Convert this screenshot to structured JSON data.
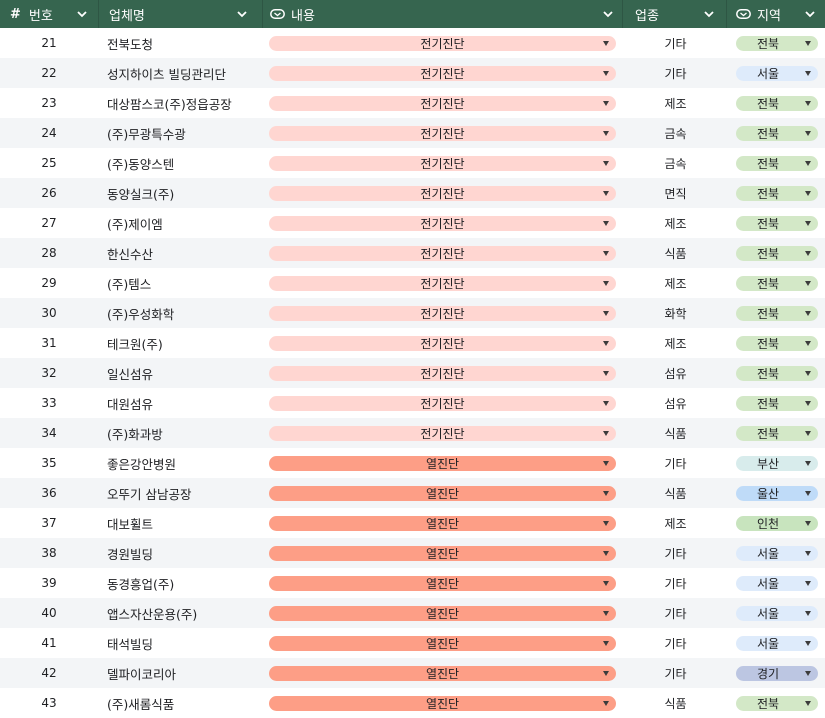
{
  "header": {
    "col_hash": "#",
    "col_no": "번호",
    "col_name": "업체명",
    "col_content": "내용",
    "col_type": "업종",
    "col_region": "지역"
  },
  "colors": {
    "header_bg": "#36654f",
    "pill_전기진단": "#ffd6d1",
    "pill_열진단": "#fd9e86",
    "region_전북": "#d3e8c7",
    "region_서울": "#deebfb",
    "region_부산": "#d8ecec",
    "region_울산": "#bfdbf8",
    "region_인천": "#c8e4be",
    "region_경기": "#bcc6e2"
  },
  "rows": [
    {
      "no": "21",
      "name": "전북도청",
      "content": "전기진단",
      "type": "기타",
      "region": "전북"
    },
    {
      "no": "22",
      "name": "성지하이츠 빌딩관리단",
      "content": "전기진단",
      "type": "기타",
      "region": "서울"
    },
    {
      "no": "23",
      "name": "대상팜스코(주)정읍공장",
      "content": "전기진단",
      "type": "제조",
      "region": "전북"
    },
    {
      "no": "24",
      "name": "(주)무광특수광",
      "content": "전기진단",
      "type": "금속",
      "region": "전북"
    },
    {
      "no": "25",
      "name": "(주)동양스텐",
      "content": "전기진단",
      "type": "금속",
      "region": "전북"
    },
    {
      "no": "26",
      "name": "동양실크(주)",
      "content": "전기진단",
      "type": "면직",
      "region": "전북"
    },
    {
      "no": "27",
      "name": "(주)제이엠",
      "content": "전기진단",
      "type": "제조",
      "region": "전북"
    },
    {
      "no": "28",
      "name": "한신수산",
      "content": "전기진단",
      "type": "식품",
      "region": "전북"
    },
    {
      "no": "29",
      "name": "(주)템스",
      "content": "전기진단",
      "type": "제조",
      "region": "전북"
    },
    {
      "no": "30",
      "name": "(주)우성화학",
      "content": "전기진단",
      "type": "화학",
      "region": "전북"
    },
    {
      "no": "31",
      "name": "테크원(주)",
      "content": "전기진단",
      "type": "제조",
      "region": "전북"
    },
    {
      "no": "32",
      "name": "일신섬유",
      "content": "전기진단",
      "type": "섬유",
      "region": "전북"
    },
    {
      "no": "33",
      "name": "대원섬유",
      "content": "전기진단",
      "type": "섬유",
      "region": "전북"
    },
    {
      "no": "34",
      "name": "(주)화과방",
      "content": "전기진단",
      "type": "식품",
      "region": "전북"
    },
    {
      "no": "35",
      "name": "좋은강안병원",
      "content": "열진단",
      "type": "기타",
      "region": "부산"
    },
    {
      "no": "36",
      "name": "오뚜기 삼남공장",
      "content": "열진단",
      "type": "식품",
      "region": "울산"
    },
    {
      "no": "37",
      "name": "대보휠트",
      "content": "열진단",
      "type": "제조",
      "region": "인천"
    },
    {
      "no": "38",
      "name": "경원빌딩",
      "content": "열진단",
      "type": "기타",
      "region": "서울"
    },
    {
      "no": "39",
      "name": "동경흥업(주)",
      "content": "열진단",
      "type": "기타",
      "region": "서울"
    },
    {
      "no": "40",
      "name": "앱스자산운용(주)",
      "content": "열진단",
      "type": "기타",
      "region": "서울"
    },
    {
      "no": "41",
      "name": "태석빌딩",
      "content": "열진단",
      "type": "기타",
      "region": "서울"
    },
    {
      "no": "42",
      "name": "델파이코리아",
      "content": "열진단",
      "type": "기타",
      "region": "경기"
    },
    {
      "no": "43",
      "name": "(주)새롬식품",
      "content": "열진단",
      "type": "식품",
      "region": "전북"
    }
  ]
}
